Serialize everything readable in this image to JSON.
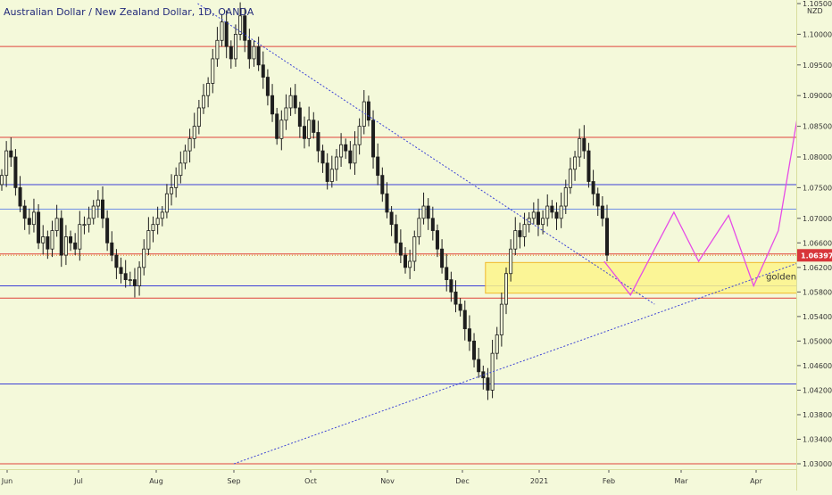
{
  "header": {
    "title": "Australian Dollar / New Zealand Dollar, 1D, OANDA"
  },
  "chart_data": {
    "type": "candlestick",
    "title": "Australian Dollar / New Zealand Dollar, 1D, OANDA",
    "currency": "NZD",
    "current_price": "1.06397",
    "ylim": [
      1.029,
      1.106
    ],
    "y_ticks": [
      "1.10500",
      "1.10000",
      "1.09500",
      "1.09000",
      "1.08500",
      "1.08000",
      "1.07500",
      "1.07000",
      "1.06600",
      "1.06200",
      "1.05800",
      "1.05400",
      "1.05000",
      "1.04600",
      "1.04200",
      "1.03800",
      "1.03400",
      "1.03000"
    ],
    "x_ticks": [
      "Jun",
      "Jul",
      "Aug",
      "Sep",
      "Oct",
      "Nov",
      "Dec",
      "2021",
      "Feb",
      "Mar",
      "Apr"
    ],
    "grid": false,
    "horizontal_levels": [
      {
        "price": 1.098,
        "color": "#e0443c"
      },
      {
        "price": 1.0832,
        "color": "#e0443c"
      },
      {
        "price": 1.0755,
        "color": "#3b3fd6"
      },
      {
        "price": 1.0715,
        "color": "#6e8fe6"
      },
      {
        "price": 1.0642,
        "color": "#e0443c"
      },
      {
        "price": 1.059,
        "color": "#3b3fd6"
      },
      {
        "price": 1.057,
        "color": "#e0443c"
      },
      {
        "price": 1.043,
        "color": "#3b3fd6"
      },
      {
        "price": 1.03,
        "color": "#e0443c"
      }
    ],
    "trendlines": [
      {
        "from": [
          "Aug 17",
          1.105
        ],
        "to": [
          "Feb 20",
          1.056
        ],
        "style": "dotted"
      },
      {
        "from": [
          "Sep 1",
          1.03
        ],
        "to": [
          "Apr 20",
          1.063
        ],
        "style": "dotted"
      }
    ],
    "zone": {
      "label": "golden fibo",
      "top": 1.0628,
      "bottom": 1.0578,
      "from": "Dec 10",
      "to": "Apr 20"
    },
    "projection": [
      [
        "Jan 29",
        1.063
      ],
      [
        "Feb 10",
        1.0575
      ],
      [
        "Feb 28",
        1.071
      ],
      [
        "Mar 8",
        1.063
      ],
      [
        "Mar 20",
        1.0705
      ],
      [
        "Mar 30",
        1.059
      ],
      [
        "Apr 10",
        1.068
      ],
      [
        "Apr 20",
        1.092
      ]
    ],
    "candles_approx_close": [
      1.077,
      1.081,
      1.08,
      1.075,
      1.072,
      1.07,
      1.069,
      1.071,
      1.066,
      1.067,
      1.065,
      1.068,
      1.07,
      1.064,
      1.067,
      1.066,
      1.065,
      1.069,
      1.069,
      1.07,
      1.072,
      1.073,
      1.07,
      1.066,
      1.064,
      1.062,
      1.061,
      1.06,
      1.06,
      1.059,
      1.062,
      1.065,
      1.068,
      1.069,
      1.07,
      1.071,
      1.074,
      1.075,
      1.077,
      1.079,
      1.081,
      1.083,
      1.085,
      1.088,
      1.09,
      1.092,
      1.096,
      1.099,
      1.102,
      1.098,
      1.096,
      1.1,
      1.103,
      1.099,
      1.096,
      1.098,
      1.095,
      1.093,
      1.09,
      1.087,
      1.083,
      1.086,
      1.088,
      1.09,
      1.088,
      1.085,
      1.083,
      1.086,
      1.084,
      1.081,
      1.079,
      1.076,
      1.078,
      1.08,
      1.082,
      1.081,
      1.079,
      1.082,
      1.085,
      1.089,
      1.086,
      1.08,
      1.077,
      1.074,
      1.071,
      1.069,
      1.066,
      1.064,
      1.062,
      1.063,
      1.067,
      1.07,
      1.072,
      1.07,
      1.068,
      1.065,
      1.062,
      1.06,
      1.058,
      1.056,
      1.055,
      1.052,
      1.05,
      1.047,
      1.045,
      1.044,
      1.042,
      1.048,
      1.051,
      1.056,
      1.061,
      1.065,
      1.068,
      1.067,
      1.069,
      1.07,
      1.071,
      1.069,
      1.07,
      1.072,
      1.071,
      1.07,
      1.072,
      1.075,
      1.078,
      1.08,
      1.083,
      1.081,
      1.076,
      1.074,
      1.072,
      1.07,
      1.064
    ]
  },
  "annotations": {
    "zone_label": "golden fibo"
  }
}
